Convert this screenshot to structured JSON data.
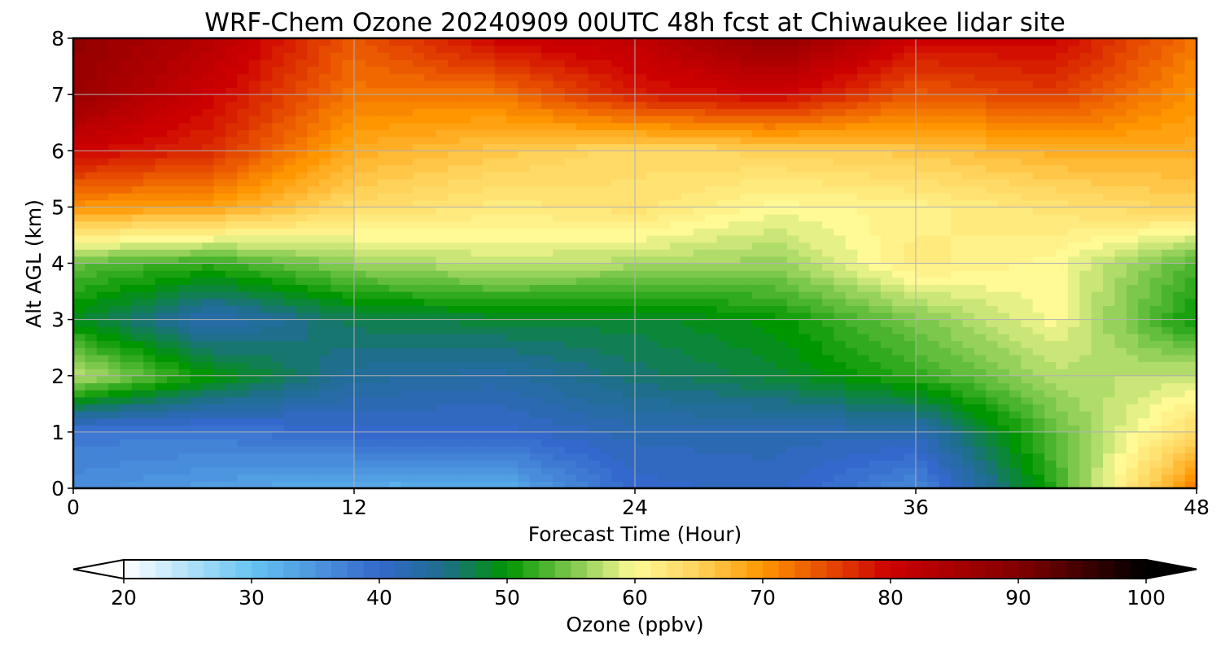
{
  "chart_data": {
    "type": "heatmap",
    "title": "WRF-Chem Ozone  20240909 00UTC 48h fcst at Chiwaukee lidar site",
    "xlabel": "Forecast Time (Hour)",
    "ylabel": "Alt AGL (km)",
    "xlim": [
      0,
      48
    ],
    "ylim": [
      0,
      8
    ],
    "x_ticks": [
      0,
      12,
      24,
      36,
      48
    ],
    "x_tick_labels": [
      "0",
      "12",
      "24",
      "36",
      "48"
    ],
    "y_ticks": [
      0,
      1,
      2,
      3,
      4,
      5,
      6,
      7,
      8
    ],
    "y_tick_labels": [
      "0",
      "1",
      "2",
      "3",
      "4",
      "5",
      "6",
      "7",
      "8"
    ],
    "grid": true,
    "x": [
      0,
      6,
      12,
      18,
      24,
      30,
      36,
      42,
      48
    ],
    "y": [
      0,
      1,
      2,
      3,
      4,
      5,
      6,
      7,
      8
    ],
    "values": [
      [
        36,
        34,
        32,
        32,
        40,
        41,
        36,
        52,
        72
      ],
      [
        38,
        38,
        40,
        40,
        42,
        42,
        42,
        54,
        64
      ],
      [
        58,
        50,
        44,
        43,
        46,
        48,
        52,
        57,
        58
      ],
      [
        49,
        42,
        47,
        48,
        48,
        50,
        55,
        60,
        50
      ],
      [
        54,
        52,
        56,
        58,
        57,
        56,
        62,
        60,
        53
      ],
      [
        70,
        69,
        64,
        62,
        63,
        60,
        61,
        63,
        65
      ],
      [
        80,
        77,
        68,
        66,
        64,
        65,
        66,
        68,
        68
      ],
      [
        87,
        80,
        72,
        72,
        78,
        80,
        74,
        76,
        70
      ],
      [
        88,
        83,
        74,
        80,
        82,
        88,
        80,
        80,
        72
      ]
    ],
    "colorbar": {
      "label": "Ozone  (ppbv)",
      "min": 20,
      "max": 100,
      "ticks": [
        20,
        30,
        40,
        50,
        60,
        70,
        80,
        90,
        100
      ],
      "tick_labels": [
        "20",
        "30",
        "40",
        "50",
        "60",
        "70",
        "80",
        "90",
        "100"
      ],
      "extend": "both",
      "color_stops": [
        {
          "value": 20,
          "color": "#ffffff"
        },
        {
          "value": 30,
          "color": "#66c4f2"
        },
        {
          "value": 40,
          "color": "#3468cc"
        },
        {
          "value": 45,
          "color": "#1e6e8c"
        },
        {
          "value": 50,
          "color": "#009600"
        },
        {
          "value": 55,
          "color": "#7cc84c"
        },
        {
          "value": 60,
          "color": "#fffa96"
        },
        {
          "value": 65,
          "color": "#ffd25a"
        },
        {
          "value": 70,
          "color": "#ff9600"
        },
        {
          "value": 80,
          "color": "#cd0000"
        },
        {
          "value": 90,
          "color": "#820000"
        },
        {
          "value": 100,
          "color": "#000000"
        }
      ]
    }
  }
}
